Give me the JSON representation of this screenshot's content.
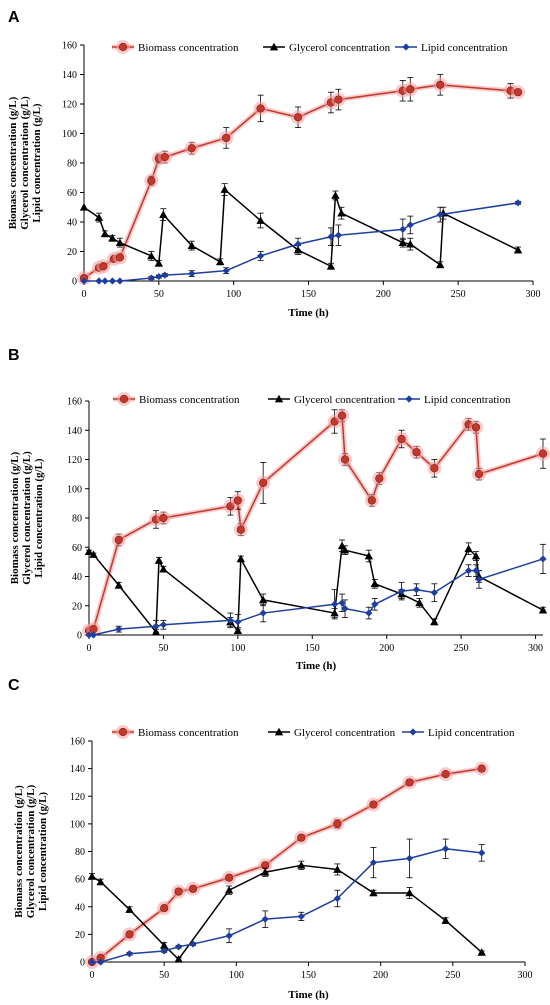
{
  "chart_data": [
    {
      "type": "line",
      "panel_label": "A",
      "xlabel": "Time (h)",
      "ylabel_lines": [
        "Biomass concentration (g/L)",
        "Glycerol concentration (g/L)",
        "Lipid concentration (g/L)"
      ],
      "xlim": [
        0,
        300
      ],
      "ylim": [
        0,
        160
      ],
      "xticks": [
        0,
        50,
        100,
        150,
        200,
        250,
        300
      ],
      "yticks": [
        0,
        20,
        40,
        60,
        80,
        100,
        120,
        140,
        160
      ],
      "grid": false,
      "legend_position": "top",
      "series": [
        {
          "name": "Biomass concentration",
          "color": "#c0392b",
          "marker": "circle",
          "glow": true,
          "x": [
            0,
            10,
            13,
            20,
            24,
            45,
            50,
            54,
            72,
            95,
            118,
            143,
            165,
            170,
            213,
            218,
            238,
            285,
            290
          ],
          "y": [
            2,
            9,
            10,
            15,
            16,
            68,
            83,
            84,
            90,
            97,
            117,
            111,
            121,
            123,
            129,
            130,
            133,
            129,
            128
          ],
          "err": [
            1,
            1,
            1,
            1,
            1,
            3,
            3,
            4,
            4,
            7,
            9,
            7,
            7,
            7,
            7,
            8,
            7,
            5,
            0
          ]
        },
        {
          "name": "Glycerol concentration",
          "color": "#000000",
          "marker": "triangle",
          "x": [
            0,
            10,
            14,
            19,
            24,
            45,
            50,
            53,
            72,
            91,
            94,
            118,
            143,
            165,
            168,
            172,
            213,
            218,
            238,
            240,
            290
          ],
          "y": [
            50,
            43,
            32,
            29,
            26,
            17,
            12,
            45,
            24,
            13,
            62,
            41,
            21,
            10,
            58,
            46,
            26,
            25,
            11,
            46,
            21
          ],
          "err": [
            0,
            3,
            2,
            2,
            3,
            3,
            2,
            4,
            3,
            2,
            4,
            5,
            3,
            2,
            3,
            4,
            3,
            4,
            2,
            4,
            2
          ]
        },
        {
          "name": "Lipid concentration",
          "color": "#1f3fa0",
          "marker": "diamond",
          "x": [
            0,
            10,
            14,
            19,
            24,
            45,
            50,
            54,
            72,
            95,
            118,
            143,
            165,
            170,
            213,
            218,
            238,
            290
          ],
          "y": [
            0,
            0,
            0,
            0,
            0,
            2,
            3,
            4,
            5,
            7,
            17,
            25,
            30,
            31,
            35,
            38,
            45,
            53
          ],
          "err": [
            0,
            0,
            0,
            0,
            0,
            1,
            1,
            1,
            2,
            2,
            3,
            4,
            6,
            7,
            7,
            6,
            5,
            1
          ]
        }
      ]
    },
    {
      "type": "line",
      "panel_label": "B",
      "xlabel": "Time (h)",
      "ylabel_lines": [
        "Biomass concentration (g/L)",
        "Glycerol concentration (g/L)",
        "Lipid concentration (g/L)"
      ],
      "xlim": [
        0,
        305
      ],
      "ylim": [
        0,
        160
      ],
      "xticks": [
        0,
        50,
        100,
        150,
        200,
        250,
        300
      ],
      "yticks": [
        0,
        20,
        40,
        60,
        80,
        100,
        120,
        140,
        160
      ],
      "grid": false,
      "legend_position": "top",
      "series": [
        {
          "name": "Biomass concentration",
          "color": "#c0392b",
          "marker": "circle",
          "glow": true,
          "x": [
            0,
            3,
            20,
            45,
            50,
            95,
            100,
            102,
            117,
            165,
            170,
            172,
            190,
            195,
            210,
            220,
            232,
            255,
            260,
            262,
            305
          ],
          "y": [
            3,
            4,
            65,
            79,
            80,
            88,
            92,
            72,
            104,
            146,
            150,
            120,
            92,
            107,
            134,
            125,
            114,
            144,
            142,
            110,
            124
          ],
          "err": [
            1,
            1,
            4,
            6,
            4,
            6,
            6,
            4,
            14,
            8,
            4,
            4,
            4,
            4,
            6,
            4,
            6,
            4,
            4,
            4,
            10
          ]
        },
        {
          "name": "Glycerol concentration",
          "color": "#000000",
          "marker": "triangle",
          "x": [
            0,
            3,
            20,
            45,
            47,
            50,
            95,
            100,
            102,
            117,
            165,
            170,
            172,
            188,
            192,
            210,
            222,
            232,
            255,
            260,
            262,
            305
          ],
          "y": [
            57,
            55,
            34,
            2,
            51,
            45,
            9,
            3,
            52,
            24,
            15,
            61,
            58,
            54,
            35,
            28,
            22,
            9,
            59,
            54,
            40,
            17
          ],
          "err": [
            1,
            1,
            2,
            2,
            2,
            2,
            3,
            2,
            2,
            4,
            3,
            4,
            3,
            4,
            3,
            3,
            3,
            2,
            4,
            3,
            4,
            2
          ]
        },
        {
          "name": "Lipid concentration",
          "color": "#1f3fa0",
          "marker": "diamond",
          "x": [
            0,
            3,
            20,
            45,
            50,
            95,
            100,
            117,
            165,
            170,
            172,
            188,
            192,
            210,
            220,
            232,
            255,
            260,
            262,
            305
          ],
          "y": [
            0,
            0,
            4,
            6,
            7,
            10,
            9,
            15,
            21,
            22,
            18,
            15,
            21,
            30,
            31,
            29,
            44,
            44,
            38,
            52
          ],
          "err": [
            0,
            0,
            2,
            4,
            3,
            5,
            5,
            6,
            10,
            6,
            6,
            4,
            4,
            6,
            4,
            6,
            4,
            4,
            6,
            10
          ]
        }
      ]
    },
    {
      "type": "line",
      "panel_label": "C",
      "xlabel": "Time (h)",
      "ylabel_lines": [
        "Biomass concentration (g/L)",
        "Glycerol concentration (g/L)",
        "Lipid concentration (g/L)"
      ],
      "xlim": [
        0,
        300
      ],
      "ylim": [
        0,
        160
      ],
      "xticks": [
        0,
        50,
        100,
        150,
        200,
        250,
        300
      ],
      "yticks": [
        0,
        20,
        40,
        60,
        80,
        100,
        120,
        140,
        160
      ],
      "grid": false,
      "legend_position": "top",
      "series": [
        {
          "name": "Biomass concentration",
          "color": "#c0392b",
          "marker": "circle",
          "glow": true,
          "x": [
            0,
            6,
            26,
            50,
            60,
            70,
            95,
            120,
            145,
            170,
            195,
            220,
            245,
            270
          ],
          "y": [
            0,
            3,
            20,
            39,
            51,
            53,
            61,
            70,
            90,
            100,
            114,
            130,
            136,
            140
          ],
          "err": [
            0,
            1,
            2,
            2,
            2,
            2,
            2,
            2,
            2,
            3,
            2,
            2,
            1,
            2
          ]
        },
        {
          "name": "Glycerol concentration",
          "color": "#000000",
          "marker": "triangle",
          "x": [
            0,
            6,
            26,
            50,
            60,
            95,
            120,
            145,
            170,
            195,
            220,
            245,
            270
          ],
          "y": [
            62,
            58,
            38,
            12,
            2,
            52,
            65,
            70,
            67,
            50,
            50,
            30,
            7
          ],
          "err": [
            2,
            2,
            2,
            2,
            1,
            3,
            3,
            3,
            4,
            2,
            4,
            2,
            1
          ]
        },
        {
          "name": "Lipid concentration",
          "color": "#1f3fa0",
          "marker": "diamond",
          "x": [
            0,
            6,
            26,
            50,
            60,
            70,
            95,
            120,
            145,
            170,
            195,
            220,
            245,
            270
          ],
          "y": [
            0,
            0,
            6,
            8,
            11,
            13,
            19,
            31,
            33,
            46,
            72,
            75,
            82,
            79
          ],
          "err": [
            0,
            0,
            1,
            1,
            1,
            1,
            5,
            6,
            3,
            6,
            11,
            14,
            7,
            6
          ]
        }
      ]
    }
  ]
}
